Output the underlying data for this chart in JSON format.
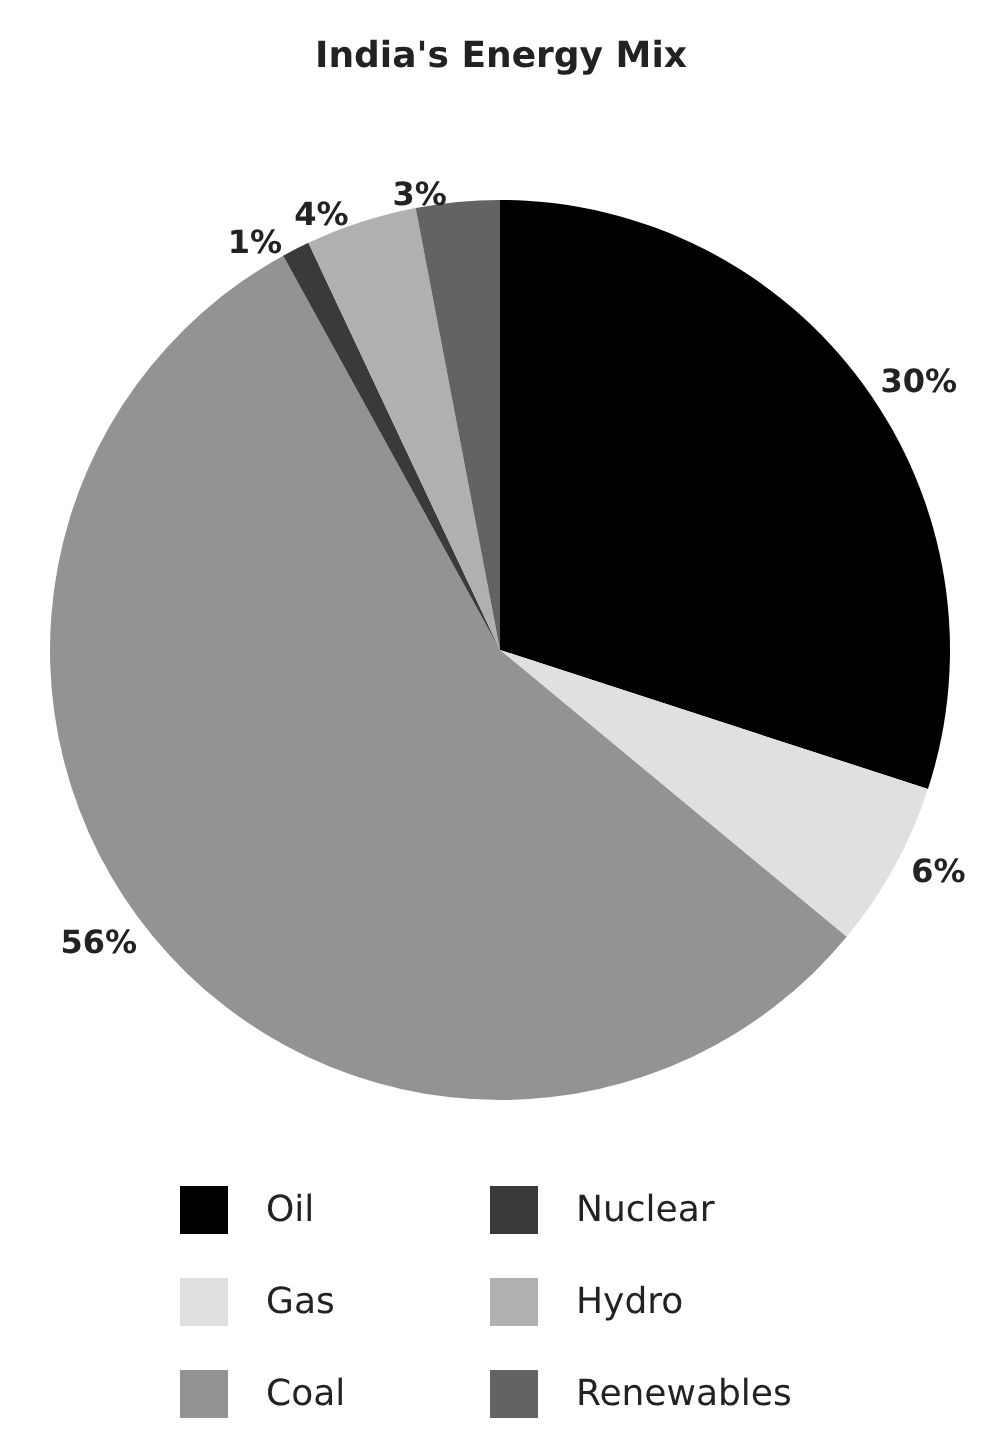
{
  "chart_data": {
    "type": "pie",
    "title": "India's Energy Mix",
    "categories": [
      "Oil",
      "Gas",
      "Coal",
      "Nuclear",
      "Hydro",
      "Renewables"
    ],
    "values": [
      30,
      6,
      56,
      1,
      4,
      3
    ],
    "colors": [
      "#000000",
      "#e0e0e2",
      "#939396",
      "#3a3a3c",
      "#b0b0b2",
      "#636365"
    ],
    "value_labels": [
      "30%",
      "6%",
      "56%",
      "1%",
      "4%",
      "3%"
    ],
    "legend": "bottom"
  }
}
